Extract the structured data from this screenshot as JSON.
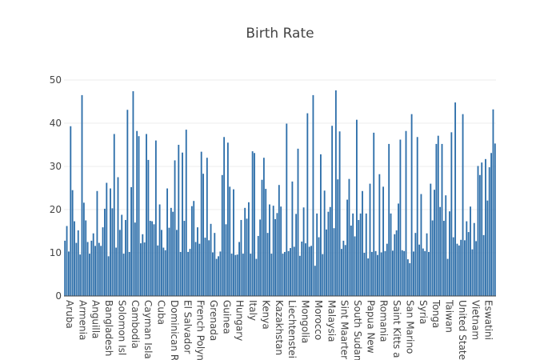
{
  "chart_data": {
    "type": "bar",
    "title": "Birth Rate",
    "xlabel": "",
    "ylabel": "",
    "ylim": [
      0,
      50
    ],
    "yticks": [
      0,
      10,
      20,
      30,
      40,
      50
    ],
    "grid": true,
    "bar_color": "#2e6faa",
    "x_tick_labels": [
      "Aruba",
      "Armenia",
      "Anguilla",
      "Bangladesh",
      "Solomon Isl",
      "Cambodia",
      "Cayman Isla",
      "Cuba",
      "Dominican R",
      "El Salvador",
      "French Polyn",
      "Grenada",
      "Guinea",
      "Hungary",
      "Italy",
      "Kenya",
      "Kazakhstan",
      "Liechtenstei",
      "Mongolia",
      "Morocco",
      "Malaysia",
      "Sint Maarter",
      "South Sudan",
      "Papua New",
      "Romania",
      "Saint Kitts a",
      "San Marino",
      "Syria",
      "Tonga",
      "Taiwan",
      "United State",
      "Vietnam",
      "Eswatini"
    ],
    "values": [
      12.8,
      16.2,
      10.3,
      39.3,
      24.5,
      17.3,
      12.3,
      15.2,
      9.6,
      46.5,
      21.6,
      17.5,
      12.5,
      9.8,
      12.8,
      14.5,
      11.6,
      24.3,
      12.3,
      11.6,
      15.9,
      20.2,
      26.2,
      9.2,
      24.9,
      20.3,
      37.5,
      11.2,
      27.5,
      15.3,
      18.8,
      9.8,
      17.6,
      43.1,
      10.2,
      25.2,
      47.4,
      17.0,
      38.2,
      37.0,
      12.2,
      14.3,
      12.4,
      37.5,
      31.5,
      17.4,
      17.3,
      16.6,
      36.0,
      11.7,
      21.2,
      15.3,
      11.2,
      10.6,
      24.9,
      15.8,
      20.4,
      19.5,
      31.4,
      15.3,
      35.0,
      10.2,
      33.2,
      17.4,
      38.5,
      10.2,
      10.9,
      20.8,
      22.0,
      12.5,
      15.9,
      12.1,
      33.4,
      28.3,
      13.5,
      32.0,
      12.9,
      16.7,
      10.1,
      14.6,
      8.6,
      9.2,
      10.3,
      28.0,
      36.8,
      16.6,
      35.5,
      25.3,
      9.8,
      24.7,
      9.5,
      9.6,
      12.5,
      17.6,
      9.8,
      20.4,
      17.9,
      21.7,
      9.8,
      33.5,
      33.1,
      8.6,
      13.9,
      17.7,
      26.9,
      32.0,
      24.8,
      14.6,
      21.2,
      9.8,
      20.9,
      17.8,
      19.2,
      25.7,
      20.7,
      9.8,
      10.2,
      39.9,
      10.4,
      11.1,
      26.5,
      11.4,
      19.0,
      34.1,
      9.3,
      12.6,
      20.5,
      12.2,
      42.3,
      11.4,
      11.6,
      46.5,
      7.0,
      19.1,
      13.6,
      32.8,
      9.7,
      24.4,
      15.4,
      19.5,
      20.6,
      39.4,
      15.7,
      47.6,
      27.0,
      38.1,
      10.9,
      12.8,
      11.8,
      22.3,
      27.1,
      16.3,
      19.1,
      13.8,
      40.8,
      17.6,
      19.1,
      24.3,
      10.0,
      19.1,
      8.7,
      26.0,
      10.2,
      37.8,
      10.4,
      9.5,
      28.2,
      10.1,
      25.3,
      10.4,
      12.1,
      35.2,
      19.1,
      10.5,
      14.3,
      15.2,
      21.4,
      36.2,
      10.6,
      10.4,
      38.2,
      8.5,
      7.6,
      42.1,
      10.3,
      14.6,
      36.8,
      11.9,
      23.6,
      11.0,
      10.4,
      14.5,
      10.2,
      26.0,
      17.5,
      24.6,
      35.2,
      37.1,
      20.6,
      35.2,
      17.4,
      23.3,
      8.6,
      19.6,
      37.9,
      13.6,
      44.8,
      12.1,
      11.7,
      13.0,
      42.1,
      12.9,
      17.3,
      14.8,
      20.7,
      10.8,
      16.9,
      12.7,
      30.1,
      28.0,
      30.9,
      14.1,
      31.7,
      22.1,
      29.8,
      33.1,
      43.2,
      35.3
    ]
  }
}
